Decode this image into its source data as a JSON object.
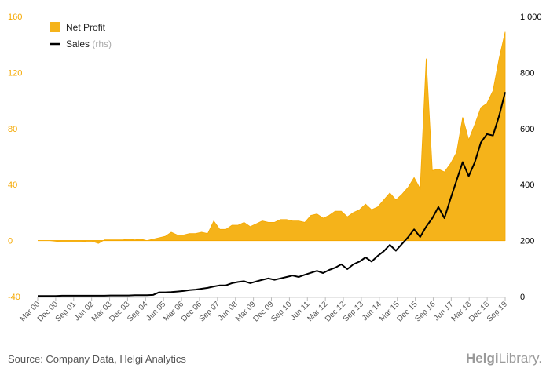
{
  "footer": {
    "source": "Source: Company Data, Helgi Analytics",
    "brand_bold": "Helgi",
    "brand_rest": "Library."
  },
  "chart_data": {
    "type": "area",
    "legend": {
      "placement": "top-left"
    },
    "grid": false,
    "left_axis": {
      "range": [
        -40,
        160
      ],
      "ticks": [
        "160",
        "120",
        "80",
        "40",
        "0",
        "-40"
      ],
      "color": "#f5a800"
    },
    "right_axis": {
      "range": [
        0,
        1000
      ],
      "ticks": [
        "1 000",
        "800",
        "600",
        "400",
        "200",
        "0"
      ],
      "color": "#000000"
    },
    "x_tick_labels": [
      "Mar 00",
      "Dec 00",
      "Sep 01",
      "Jun 02",
      "Mar 03",
      "Dec 03",
      "Sep 04",
      "Jun 05",
      "Mar 06",
      "Dec 06",
      "Sep 07",
      "Jun 08",
      "Mar 09",
      "Dec 09",
      "Sep 10",
      "Jun 11",
      "Mar 12",
      "Dec 12",
      "Sep 13",
      "Jun 14",
      "Mar 15",
      "Dec 15",
      "Sep 16",
      "Jun 17",
      "Mar 18",
      "Dec 18",
      "Sep 19"
    ],
    "series": [
      {
        "name": "Net Profit",
        "axis": "left",
        "style": "area",
        "color": "#f5b31a",
        "values": [
          0,
          0,
          0,
          -0.5,
          -1,
          -1,
          -1,
          -1,
          -0.5,
          -0.5,
          -2,
          0.5,
          0.5,
          0.5,
          0.5,
          1,
          0.5,
          1,
          0,
          1,
          2,
          3,
          6,
          4,
          4,
          5,
          5,
          6,
          5,
          14,
          8,
          8,
          11,
          11,
          13,
          10,
          12,
          14,
          13,
          13,
          15,
          15,
          14,
          14,
          13,
          18,
          19,
          16,
          18,
          21,
          21,
          17,
          20,
          22,
          26,
          22,
          24,
          29,
          34,
          29,
          33,
          38,
          45,
          37,
          130,
          50,
          51,
          49,
          55,
          63,
          88,
          72,
          83,
          95,
          98,
          107,
          130,
          149
        ]
      },
      {
        "name": "Sales",
        "name_note": "(rhs)",
        "axis": "right",
        "style": "line",
        "color": "#000000",
        "values": [
          2,
          2,
          2,
          2,
          3,
          3,
          3,
          3,
          3,
          3,
          3,
          3,
          4,
          4,
          4,
          4,
          5,
          5,
          5,
          6,
          15,
          15,
          16,
          18,
          20,
          23,
          25,
          28,
          31,
          36,
          40,
          40,
          48,
          52,
          55,
          48,
          54,
          60,
          65,
          60,
          65,
          70,
          75,
          70,
          78,
          85,
          92,
          84,
          95,
          103,
          115,
          98,
          115,
          125,
          140,
          125,
          145,
          162,
          185,
          164,
          188,
          212,
          240,
          213,
          250,
          280,
          320,
          280,
          350,
          415,
          480,
          430,
          480,
          550,
          580,
          575,
          645,
          730
        ]
      }
    ]
  }
}
